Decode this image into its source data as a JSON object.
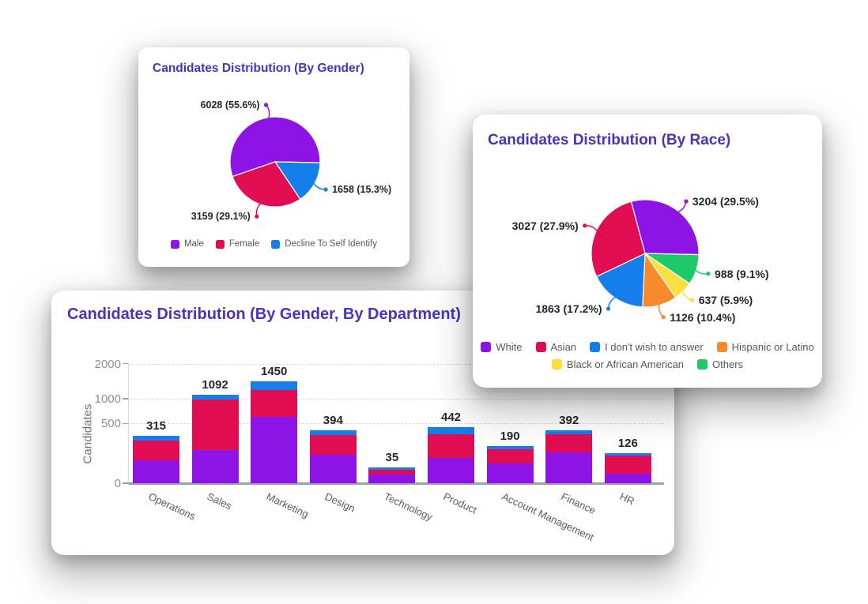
{
  "page": {
    "background": "#ffffff",
    "title_color": "#4634C1"
  },
  "chart_data": [
    {
      "id": "gender-pie",
      "type": "pie",
      "title": "Candidates Distribution (By Gender)",
      "labels": [
        "Male",
        "Female",
        "Decline To Self Identify"
      ],
      "values": [
        6028,
        3159,
        1658
      ],
      "percents": [
        "55.6%",
        "29.1%",
        "15.3%"
      ],
      "annotations": [
        "6028 (55.6%)",
        "3159 (29.1%)",
        "1658 (15.3%)"
      ],
      "colors": [
        "#8E14E6",
        "#E00D52",
        "#157EEB"
      ],
      "start_angle": 251,
      "draw_order": [
        0,
        2,
        1
      ],
      "legend_rows": [
        [
          0,
          1,
          2
        ]
      ],
      "legend_position": "bottom"
    },
    {
      "id": "race-pie",
      "type": "pie",
      "title": "Candidates Distribution (By Race)",
      "labels": [
        "White",
        "Asian",
        "I don't wish to answer",
        "Hispanic or Latino",
        "Black or African American",
        "Others"
      ],
      "values": [
        3204,
        3027,
        1863,
        1126,
        637,
        988
      ],
      "percents": [
        "29.5%",
        "27.9%",
        "17.2%",
        "10.4%",
        "5.9%",
        "9.1%"
      ],
      "annotations": [
        "3204 (29.5%)",
        "3027 (27.9%)",
        "1863 (17.2%)",
        "1126 (10.4%)",
        "637 (5.9%)",
        "988 (9.1%)"
      ],
      "colors": [
        "#8E14E6",
        "#E00D52",
        "#157EEB",
        "#F88A2E",
        "#FBDF3E",
        "#1EC96A"
      ],
      "start_angle": 345,
      "draw_order": [
        0,
        5,
        4,
        3,
        2,
        1
      ],
      "legend_rows": [
        [
          0,
          1,
          2,
          3
        ],
        [
          4,
          5
        ]
      ],
      "legend_position": "bottom"
    },
    {
      "id": "department-bar",
      "type": "bar",
      "stacked": true,
      "title": "Candidates Distribution (By Gender, By Department)",
      "categories": [
        "Operations",
        "Sales",
        "Marketing",
        "Design",
        "Technology",
        "Product",
        "Account Management",
        "Finance",
        "HR"
      ],
      "totals": [
        315,
        1092,
        1450,
        394,
        35,
        442,
        190,
        392,
        126
      ],
      "series": [
        {
          "name": "Male",
          "color": "#8E14E6",
          "values": [
            72,
            153,
            617,
            114,
            10,
            89,
            56,
            132,
            13
          ]
        },
        {
          "name": "Female",
          "color": "#E00D52",
          "values": [
            183,
            818,
            593,
            207,
            16,
            243,
            106,
            203,
            95
          ]
        },
        {
          "name": "Decline To Self Identify",
          "color": "#157EEB",
          "values": [
            60,
            121,
            240,
            73,
            9,
            110,
            28,
            57,
            18
          ]
        }
      ],
      "xlabel": "",
      "ylabel": "Candidates",
      "y_ticks": [
        0,
        500,
        1000,
        2000
      ],
      "y_max": 2000,
      "scale": "sqrt",
      "grid": "dashed-horizontal"
    }
  ]
}
